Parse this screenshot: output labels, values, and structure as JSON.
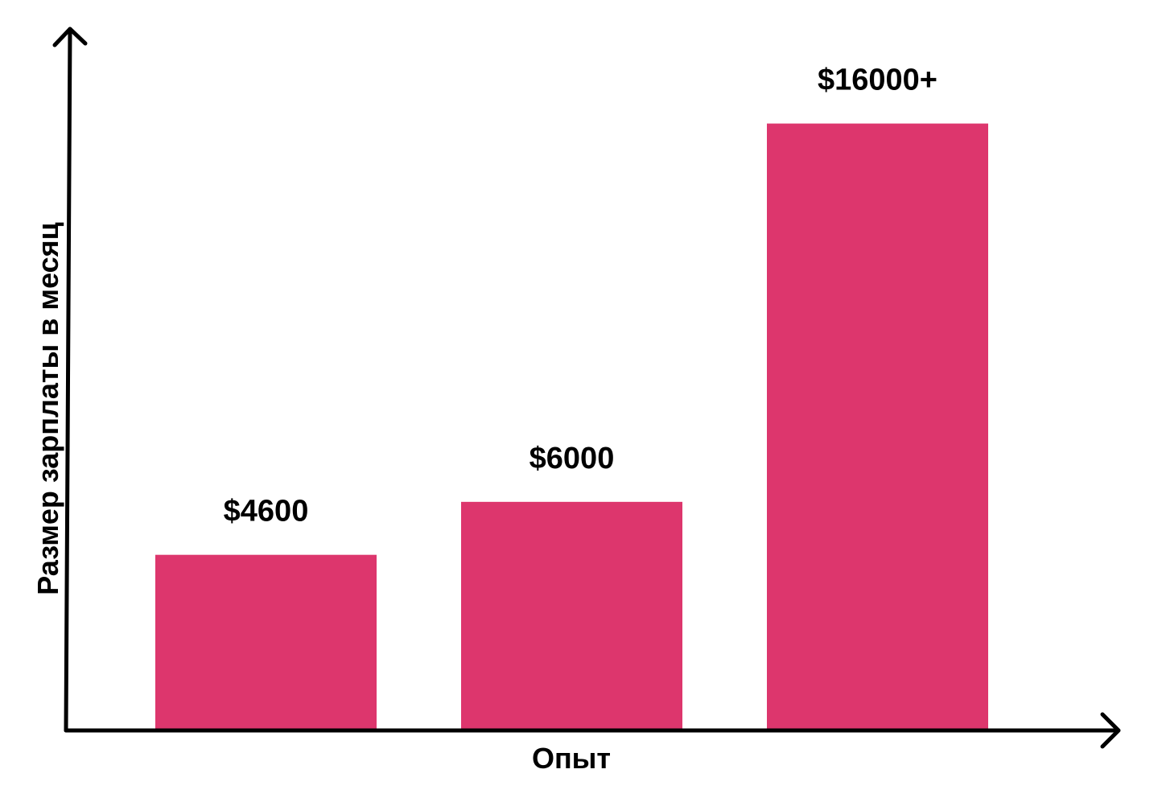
{
  "chart_data": {
    "type": "bar",
    "categories": [
      "",
      "",
      ""
    ],
    "values": [
      4600,
      6000,
      16000
    ],
    "data_labels": [
      "$4600",
      "$6000",
      "$16000+"
    ],
    "title": "",
    "xlabel": "Опыт",
    "ylabel": "Размер зарплаты в месяц",
    "ylim": [
      0,
      18500
    ],
    "grid": false,
    "legend": "none",
    "y_ticks_shown": false,
    "bar_color": "#DD366D",
    "axis_color": "#000000"
  }
}
